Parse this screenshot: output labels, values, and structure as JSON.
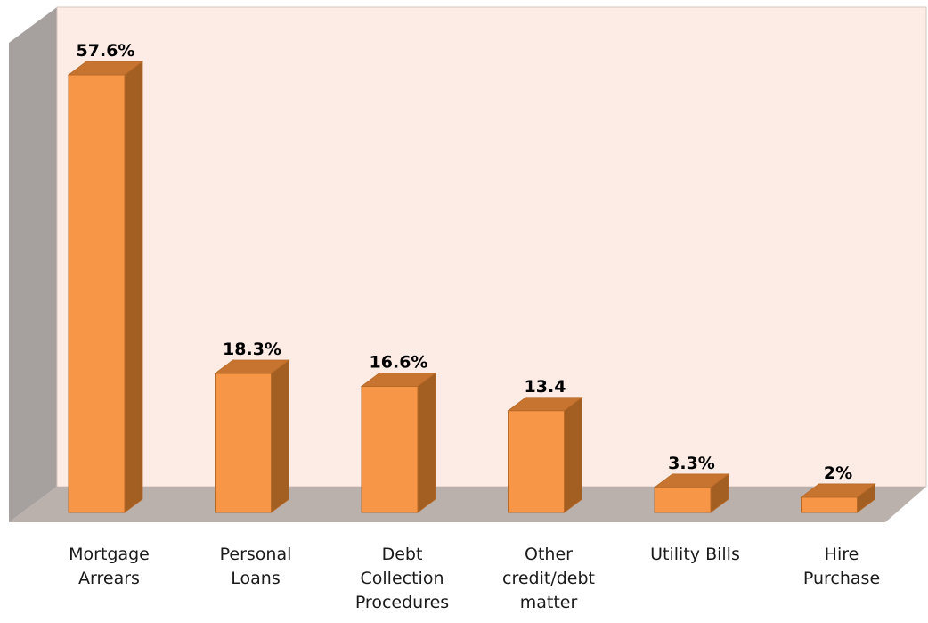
{
  "chart_data": {
    "type": "bar",
    "style": "3d-column",
    "categories": [
      [
        "Mortgage",
        "Arrears"
      ],
      [
        "Personal",
        "Loans"
      ],
      [
        "Debt",
        "Collection",
        "Procedures"
      ],
      [
        "Other",
        "credit/debt",
        "matter"
      ],
      [
        "Utility Bills"
      ],
      [
        "Hire",
        "Purchase"
      ]
    ],
    "values": [
      57.6,
      18.3,
      16.6,
      13.4,
      3.3,
      2
    ],
    "data_labels": [
      "57.6%",
      "18.3%",
      "16.6%",
      "13.4",
      "3.3%",
      "2%"
    ],
    "title": "",
    "xlabel": "",
    "ylabel": "",
    "ylim": [
      0,
      60
    ],
    "grid": false,
    "legend": "none"
  },
  "colors": {
    "bar_front": "#f79646",
    "bar_side": "#a35e21",
    "bar_top": "#c6742f",
    "bar_outline": "#b86a28",
    "back_wall": "#fdece6",
    "back_wall_border": "#d9c5bd",
    "side_wall": "#a6a09e",
    "floor": "#bab1ad"
  }
}
